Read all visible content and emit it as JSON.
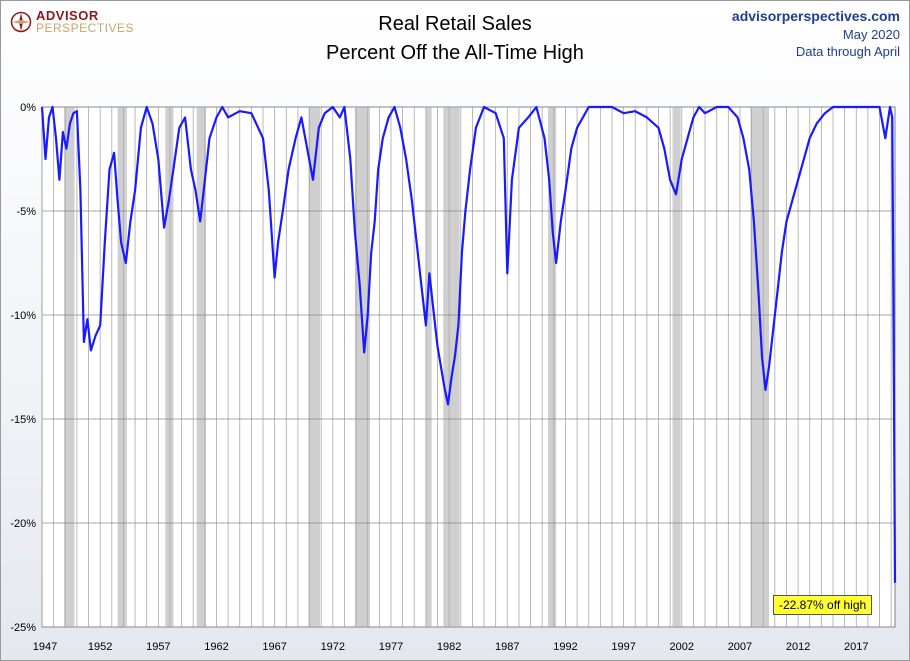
{
  "logo": {
    "line1": "ADVISOR",
    "line2": "PERSPECTIVES"
  },
  "header": {
    "title_line1": "Real Retail Sales",
    "title_line2": "Percent Off the All-Time High"
  },
  "source": {
    "site": "advisorperspectives.com",
    "date": "May 2020",
    "note": "Data through April"
  },
  "colors": {
    "line": "#1a1aff",
    "recession": "#cfcfcf",
    "callout_bg": "#ffff33"
  },
  "callout": {
    "text": "-22.87% off high"
  },
  "chart_data": {
    "type": "line",
    "ylim": [
      -25,
      0
    ],
    "yticks": [
      "0%",
      "-5%",
      "-10%",
      "-15%",
      "-20%",
      "-25%"
    ],
    "ytick_values": [
      0,
      -5,
      -10,
      -15,
      -20,
      -25
    ],
    "xlim": [
      1947,
      2020.33
    ],
    "xticks": [
      "1947",
      "1952",
      "1957",
      "1962",
      "1967",
      "1972",
      "1977",
      "1982",
      "1987",
      "1992",
      "1997",
      "2002",
      "2007",
      "2012",
      "2017"
    ],
    "xtick_values": [
      1947,
      1952,
      1957,
      1962,
      1967,
      1972,
      1977,
      1982,
      1987,
      1992,
      1997,
      2002,
      2007,
      2012,
      2017
    ],
    "grid": true,
    "recessions": [
      [
        1948.9,
        1949.8
      ],
      [
        1953.5,
        1954.3
      ],
      [
        1957.6,
        1958.3
      ],
      [
        1960.3,
        1961.1
      ],
      [
        1969.9,
        1970.9
      ],
      [
        1973.9,
        1975.2
      ],
      [
        1980.0,
        1980.5
      ],
      [
        1981.5,
        1982.9
      ],
      [
        1990.5,
        1991.2
      ],
      [
        2001.2,
        2001.9
      ],
      [
        2007.9,
        2009.5
      ]
    ],
    "series": [
      {
        "x": [
          1947.0,
          1947.3,
          1947.6,
          1947.9,
          1948.2,
          1948.5,
          1948.8,
          1949.1,
          1949.4,
          1949.7,
          1950.0,
          1950.3,
          1950.6,
          1950.9,
          1951.2,
          1951.6,
          1952.0,
          1952.4,
          1952.8,
          1953.2,
          1953.5,
          1953.8,
          1954.2,
          1954.6,
          1955.0,
          1955.5,
          1956.0,
          1956.5,
          1957.0,
          1957.5,
          1957.9,
          1958.3,
          1958.8,
          1959.3,
          1959.8,
          1960.2,
          1960.6,
          1961.0,
          1961.4,
          1962.0,
          1962.5,
          1963.0,
          1964.0,
          1965.0,
          1966.0,
          1966.5,
          1967.0,
          1967.3,
          1967.7,
          1968.2,
          1968.8,
          1969.3,
          1969.8,
          1970.3,
          1970.8,
          1971.3,
          1972.0,
          1972.6,
          1973.0,
          1973.5,
          1973.9,
          1974.3,
          1974.7,
          1975.0,
          1975.3,
          1975.6,
          1975.9,
          1976.3,
          1976.8,
          1977.3,
          1977.8,
          1978.3,
          1978.8,
          1979.2,
          1979.6,
          1980.0,
          1980.3,
          1980.6,
          1981.0,
          1981.3,
          1981.6,
          1981.9,
          1982.2,
          1982.5,
          1982.8,
          1983.1,
          1983.4,
          1983.8,
          1984.3,
          1985.0,
          1986.0,
          1986.7,
          1987.0,
          1987.4,
          1988.0,
          1988.8,
          1989.5,
          1990.2,
          1990.6,
          1990.9,
          1991.2,
          1991.6,
          1992.0,
          1992.5,
          1993.0,
          1994.0,
          1995.0,
          1996.0,
          1997.0,
          1998.0,
          1999.0,
          2000.0,
          2000.5,
          2001.0,
          2001.5,
          2002.0,
          2002.5,
          2003.0,
          2003.5,
          2004.0,
          2005.0,
          2006.0,
          2006.8,
          2007.3,
          2007.8,
          2008.2,
          2008.6,
          2008.9,
          2009.2,
          2009.5,
          2009.8,
          2010.2,
          2010.6,
          2011.0,
          2011.5,
          2012.0,
          2012.5,
          2013.0,
          2013.6,
          2014.3,
          2015.0,
          2016.0,
          2017.0,
          2017.5,
          2018.0,
          2018.5,
          2019.0,
          2019.5,
          2019.9,
          2020.1,
          2020.25,
          2020.33
        ],
        "y": [
          0,
          -2.5,
          -0.5,
          0,
          -1.5,
          -3.5,
          -1.2,
          -2.0,
          -0.8,
          -0.3,
          -0.2,
          -4.0,
          -11.3,
          -10.2,
          -11.7,
          -11.0,
          -10.5,
          -6.5,
          -3.0,
          -2.2,
          -4.5,
          -6.5,
          -7.5,
          -5.5,
          -4.0,
          -1.0,
          0,
          -0.8,
          -2.5,
          -5.8,
          -4.5,
          -3.0,
          -1.0,
          -0.5,
          -3.0,
          -4.0,
          -5.5,
          -3.5,
          -1.5,
          -0.5,
          0,
          -0.5,
          -0.2,
          -0.3,
          -1.5,
          -4.0,
          -8.2,
          -6.5,
          -5.0,
          -3.0,
          -1.5,
          -0.5,
          -2.0,
          -3.5,
          -1.0,
          -0.3,
          0,
          -0.5,
          0,
          -2.5,
          -6.0,
          -8.5,
          -11.8,
          -10.0,
          -7.0,
          -5.5,
          -3.0,
          -1.5,
          -0.5,
          0,
          -1.0,
          -2.5,
          -4.5,
          -6.5,
          -8.5,
          -10.5,
          -8.0,
          -9.5,
          -11.5,
          -12.5,
          -13.5,
          -14.3,
          -13.0,
          -12.0,
          -10.5,
          -7.0,
          -5.0,
          -3.0,
          -1.0,
          0,
          -0.3,
          -1.5,
          -8.0,
          -3.5,
          -1.0,
          -0.5,
          0,
          -1.5,
          -3.5,
          -6.0,
          -7.5,
          -5.5,
          -4.0,
          -2.0,
          -1.0,
          0,
          0,
          0,
          -0.3,
          -0.2,
          -0.5,
          -1.0,
          -2.0,
          -3.5,
          -4.2,
          -2.5,
          -1.5,
          -0.5,
          0,
          -0.3,
          0,
          0,
          -0.5,
          -1.5,
          -3.0,
          -5.5,
          -9.0,
          -12.0,
          -13.6,
          -12.5,
          -11.0,
          -9.0,
          -7.0,
          -5.5,
          -4.5,
          -3.5,
          -2.5,
          -1.5,
          -0.8,
          -0.3,
          0,
          0,
          0,
          0,
          0,
          0,
          0,
          -1.5,
          0,
          -0.5,
          -15.0,
          -22.87
        ]
      }
    ]
  }
}
